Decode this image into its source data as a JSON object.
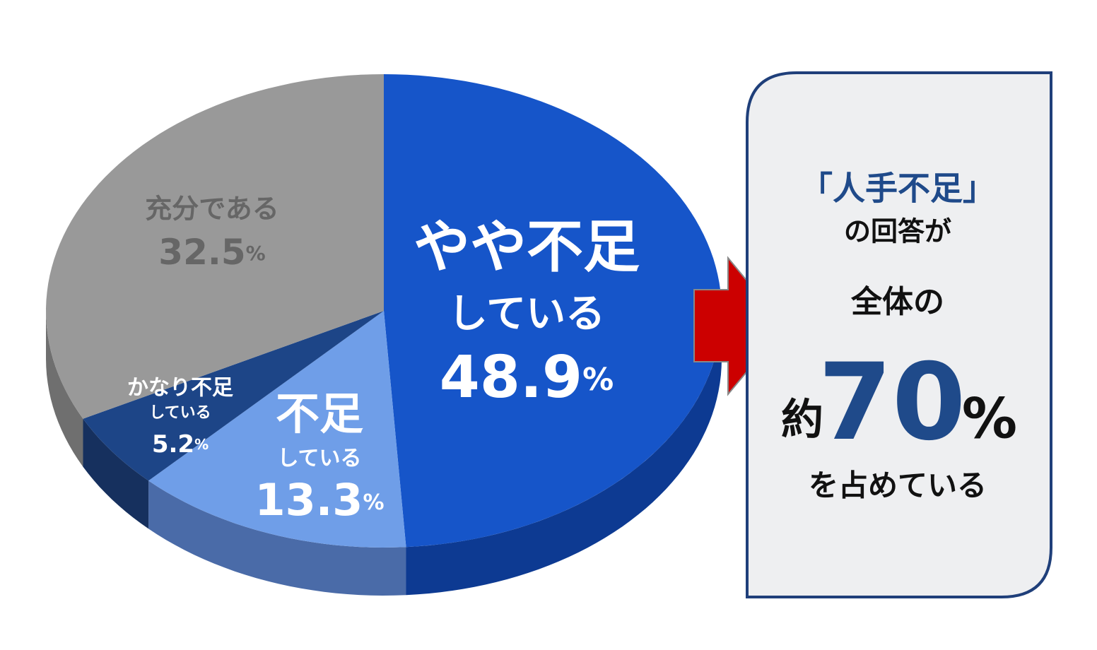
{
  "chart_data": {
    "type": "pie3d",
    "categories": [
      [
        "やや不足",
        "している"
      ],
      [
        "不足",
        "している"
      ],
      [
        "かなり不足",
        "している"
      ],
      [
        "充分である"
      ]
    ],
    "values": [
      48.9,
      13.3,
      5.2,
      32.5
    ],
    "unit": "%",
    "colors": [
      "#1655c9",
      "#6f9ee8",
      "#1d4587",
      "#999999"
    ],
    "side_colors": [
      "#0d3a92",
      "#4a6ba8",
      "#16305e",
      "#6f6f6f"
    ],
    "label_colors": [
      "#ffffff",
      "#ffffff",
      "#ffffff",
      "#666666"
    ]
  },
  "callout": {
    "title": "「人手不足」",
    "subtitle": "の回答が",
    "line3": "全体の",
    "prefix": "約",
    "figure": 70,
    "unit": "%",
    "closing": "を占めている"
  }
}
